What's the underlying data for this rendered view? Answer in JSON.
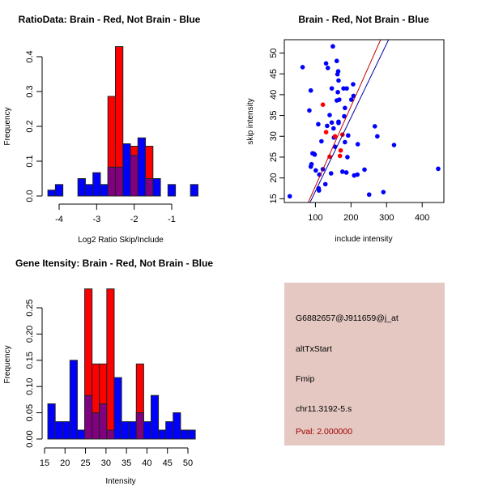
{
  "colors": {
    "red": "#ff0000",
    "blue": "#0000ff",
    "overlap": "#800080",
    "info_bg": "#e5c8c2",
    "pval": "#a00000"
  },
  "chart_data": [
    {
      "type": "bar",
      "title": "RatioData: Brain - Red, Not Brain - Blue",
      "xlabel": "Log2 Ratio Skip/Include",
      "ylabel": "Frequency",
      "bin_start": -4.3,
      "bin_width": 0.2,
      "xticks": [
        "-4",
        "-3",
        "-2",
        "-1"
      ],
      "xtick_values": [
        -4,
        -3,
        -2,
        -1
      ],
      "yticks": [
        "0.0",
        "0.1",
        "0.2",
        "0.3",
        "0.4"
      ],
      "ytick_values": [
        0,
        0.1,
        0.2,
        0.3,
        0.4
      ],
      "series": [
        {
          "name": "Brain",
          "color": "red",
          "values": [
            0,
            0,
            0,
            0,
            0,
            0,
            0,
            0,
            0.286,
            0.429,
            0,
            0.143,
            0,
            0.143,
            0,
            0,
            0,
            0,
            0,
            0
          ]
        },
        {
          "name": "Not Brain",
          "color": "blue",
          "values": [
            0.017,
            0.033,
            0,
            0,
            0.05,
            0.033,
            0.067,
            0.033,
            0.083,
            0.083,
            0.15,
            0.117,
            0.167,
            0.05,
            0.05,
            0,
            0.033,
            0,
            0,
            0.033
          ]
        }
      ]
    },
    {
      "type": "scatter",
      "title": "Brain - Red, Not Brain - Blue",
      "xlabel": "include intensity",
      "ylabel": "skip intensity",
      "xlim": [
        12.6,
        461
      ],
      "ylim": [
        14.1,
        53.2
      ],
      "xticks": [
        "100",
        "200",
        "300",
        "400"
      ],
      "xtick_values": [
        100,
        200,
        300,
        400
      ],
      "yticks": [
        "15",
        "20",
        "25",
        "30",
        "35",
        "40",
        "45",
        "50"
      ],
      "ytick_values": [
        15,
        20,
        25,
        30,
        35,
        40,
        45,
        50
      ],
      "series": [
        {
          "name": "Not Brain",
          "color": "blue",
          "points": [
            [
              28,
              15.6
            ],
            [
              64,
              46.6
            ],
            [
              149,
              51.6
            ],
            [
              130,
              47.5
            ],
            [
              135,
              46.4
            ],
            [
              160,
              48.1
            ],
            [
              164,
              45.6
            ],
            [
              162,
              44.9
            ],
            [
              165,
              43.4
            ],
            [
              87,
              41
            ],
            [
              146,
              41.5
            ],
            [
              179,
              41.5
            ],
            [
              188,
              41.5
            ],
            [
              206,
              42.5
            ],
            [
              207,
              39.7
            ],
            [
              163,
              40.6
            ],
            [
              201,
              38.8
            ],
            [
              160,
              38.6
            ],
            [
              167,
              38.8
            ],
            [
              83,
              36.2
            ],
            [
              183,
              36.8
            ],
            [
              140,
              35.1
            ],
            [
              181,
              34.8
            ],
            [
              146,
              33.3
            ],
            [
              165,
              33.5
            ],
            [
              165,
              33.2
            ],
            [
              108,
              32.9
            ],
            [
              133,
              32.5
            ],
            [
              151,
              31.9
            ],
            [
              267,
              32.4
            ],
            [
              274,
              30
            ],
            [
              321,
              27.9
            ],
            [
              152,
              29.7
            ],
            [
              192,
              30.2
            ],
            [
              117,
              28.8
            ],
            [
              183,
              28.6
            ],
            [
              219,
              28.1
            ],
            [
              155,
              27.5
            ],
            [
              92,
              25.9
            ],
            [
              98,
              25.6
            ],
            [
              96,
              25.8
            ],
            [
              190,
              25
            ],
            [
              89,
              23.3
            ],
            [
              87,
              22.7
            ],
            [
              121,
              22.1
            ],
            [
              101,
              21.8
            ],
            [
              111,
              20.8
            ],
            [
              144,
              21.1
            ],
            [
              176,
              21.5
            ],
            [
              187,
              21.3
            ],
            [
              218,
              20.8
            ],
            [
              209,
              20.6
            ],
            [
              238,
              22
            ],
            [
              445,
              22.2
            ],
            [
              128,
              18.5
            ],
            [
              109,
              17.5
            ],
            [
              110,
              17
            ],
            [
              251,
              16
            ],
            [
              291,
              16.6
            ]
          ],
          "fit": {
            "slope": 0.177,
            "intercept": -0.9
          }
        },
        {
          "name": "Brain",
          "color": "red",
          "points": [
            [
              121,
              37.6
            ],
            [
              130,
              31
            ],
            [
              155,
              30
            ],
            [
              176,
              30.4
            ],
            [
              171,
              26.6
            ],
            [
              169,
              25.3
            ],
            [
              140,
              25.1
            ]
          ],
          "fit": {
            "slope": 0.192,
            "intercept": -1.2
          }
        }
      ]
    },
    {
      "type": "bar",
      "title": "Gene Itensity: Brain - Red, Not Brain - Blue",
      "xlabel": "Intensity",
      "ylabel": "Frequency",
      "bin_start": 15.8,
      "bin_width": 1.8,
      "xticks": [
        "15",
        "20",
        "25",
        "30",
        "35",
        "40",
        "45",
        "50"
      ],
      "xtick_values": [
        15,
        20,
        25,
        30,
        35,
        40,
        45,
        50
      ],
      "yticks": [
        "0.00",
        "0.05",
        "0.10",
        "0.15",
        "0.20",
        "0.25"
      ],
      "ytick_values": [
        0,
        0.05,
        0.1,
        0.15,
        0.2,
        0.25
      ],
      "series": [
        {
          "name": "Brain",
          "color": "red",
          "values": [
            0,
            0,
            0,
            0,
            0,
            0.286,
            0.143,
            0.143,
            0.286,
            0,
            0,
            0,
            0.143,
            0,
            0,
            0,
            0,
            0,
            0,
            0
          ]
        },
        {
          "name": "Not Brain",
          "color": "blue",
          "values": [
            0.067,
            0.033,
            0.033,
            0.15,
            0.017,
            0.083,
            0.05,
            0.067,
            0.017,
            0.117,
            0.033,
            0.033,
            0.05,
            0.033,
            0.083,
            0.017,
            0.033,
            0.05,
            0.017,
            0.017
          ]
        }
      ]
    }
  ],
  "info": {
    "probe_id": "G6882657@J911659@j_at",
    "event_type": "altTxStart",
    "gene": "Fmip",
    "location": "chr11.3192-5.s",
    "pval": "Pval: 2.000000"
  }
}
